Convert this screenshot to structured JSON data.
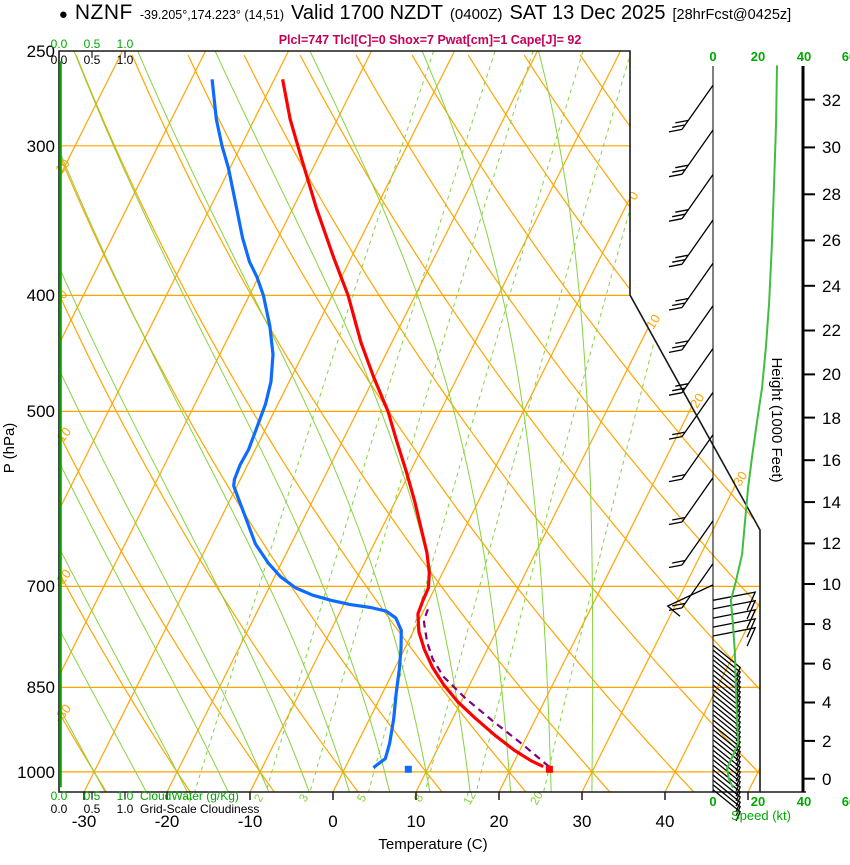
{
  "header": {
    "bullet": "●",
    "station_id": "NZNF",
    "coords": "-39.205°,174.223° (14,51)",
    "valid_label": "Valid 1700 NZDT",
    "init_time": "(0400Z)",
    "valid_date": "SAT 13 Dec 2025",
    "forecast_tag": "[28hrFcst@0425z]",
    "stats_line": "Plcl=747 Tlcl[C]=0 Shox=7 Pwat[cm]=1 Cape[J]= 92"
  },
  "chart_data": {
    "type": "line",
    "subtype": "skew-t-log-p-sounding",
    "title": "NZNF Valid 1700 NZDT (0400Z) SAT 13 Dec 2025 [28hrFcst@0425z]",
    "stability": {
      "Plcl": 747,
      "Tlcl_C": 0,
      "Shox": 7,
      "Pwat_cm": 1,
      "Cape_J": 92
    },
    "axes": {
      "pressure_label": "P (hPa)",
      "pressure_ticks_hpa": [
        250,
        300,
        400,
        500,
        700,
        850,
        1000
      ],
      "temperature_label": "Temperature (C)",
      "temperature_ticks_c": [
        -30,
        -20,
        -10,
        0,
        10,
        20,
        30,
        40
      ],
      "temperature_ticks_unlabeled_c": [
        50
      ],
      "height_label": "Height (1000 Feet)",
      "height_ticks_kft": [
        0,
        2,
        4,
        6,
        8,
        10,
        12,
        14,
        16,
        18,
        20,
        22,
        24,
        26,
        28,
        30,
        32
      ],
      "speed_label": "Speed (kt)",
      "speed_ticks_kt": [
        "0",
        "20",
        "40",
        "60"
      ],
      "cloud_scale_ticks": [
        "0.0",
        "0.5",
        "1.0"
      ],
      "cloudwater_label": "CloudWater (g/Kg)",
      "cloudiness_label": "Grid-Scale Cloudiness",
      "grid": true,
      "legend": false
    },
    "grid_spec": {
      "isotherms_c": {
        "min": -80,
        "max": 50,
        "step": 10
      },
      "dry_adiabats_c": {
        "min": -30,
        "max": 120,
        "step": 10
      },
      "moist_adiabats_c": {
        "min": -30,
        "max": 30,
        "step": 5
      },
      "mixing_ratio_gkg": [
        1,
        2,
        3,
        5,
        8,
        12,
        20
      ],
      "isotherm_boundary_labels_c": [
        0,
        10,
        20,
        30
      ],
      "dry_adiabat_edge_labels_c": [
        10,
        0,
        -10,
        -20,
        -30
      ]
    },
    "series": [
      {
        "name": "temperature_c_vs_hpa",
        "points": [
          [
            264,
            -49
          ],
          [
            285,
            -45.7
          ],
          [
            309,
            -41.7
          ],
          [
            338,
            -37.2
          ],
          [
            372,
            -32.1
          ],
          [
            400,
            -28.1
          ],
          [
            438,
            -23.7
          ],
          [
            468,
            -20.1
          ],
          [
            500,
            -16.3
          ],
          [
            530,
            -13.4
          ],
          [
            561,
            -10.5
          ],
          [
            594,
            -7.7
          ],
          [
            627,
            -5.2
          ],
          [
            656,
            -3.1
          ],
          [
            682,
            -1.6
          ],
          [
            702,
            -0.8
          ],
          [
            719,
            -0.7
          ],
          [
            738,
            -0.5
          ],
          [
            764,
            0.7
          ],
          [
            790,
            2.4
          ],
          [
            818,
            4.5
          ],
          [
            846,
            6.9
          ],
          [
            874,
            9.6
          ],
          [
            901,
            12.6
          ],
          [
            932,
            16.1
          ],
          [
            959,
            19.3
          ],
          [
            979,
            22.0
          ],
          [
            990,
            23.8
          ]
        ]
      },
      {
        "name": "dewpoint_c_vs_hpa",
        "points": [
          [
            264,
            -57.5
          ],
          [
            285,
            -54.6
          ],
          [
            300,
            -52.3
          ],
          [
            313,
            -50.2
          ],
          [
            335,
            -47.2
          ],
          [
            358,
            -44.3
          ],
          [
            375,
            -42
          ],
          [
            386,
            -40.2
          ],
          [
            400,
            -38.3
          ],
          [
            424,
            -35.7
          ],
          [
            448,
            -33.6
          ],
          [
            472,
            -32.2
          ],
          [
            493,
            -31.5
          ],
          [
            518,
            -31.1
          ],
          [
            538,
            -30.8
          ],
          [
            554,
            -30.9
          ],
          [
            570,
            -30.7
          ],
          [
            577,
            -30.4
          ],
          [
            592,
            -29
          ],
          [
            615,
            -26.9
          ],
          [
            645,
            -24.3
          ],
          [
            670,
            -21.5
          ],
          [
            687,
            -19.3
          ],
          [
            702,
            -16.8
          ],
          [
            712,
            -14.3
          ],
          [
            719,
            -11.8
          ],
          [
            725,
            -9.2
          ],
          [
            729,
            -6.6
          ],
          [
            734,
            -4.5
          ],
          [
            744,
            -2.9
          ],
          [
            762,
            -1.5
          ],
          [
            790,
            -0.4
          ],
          [
            821,
            0.6
          ],
          [
            861,
            1.7
          ],
          [
            903,
            2.9
          ],
          [
            947,
            3.9
          ],
          [
            975,
            4.3
          ],
          [
            986,
            3.7
          ],
          [
            992,
            3.4
          ]
        ]
      },
      {
        "name": "parcel_c_vs_hpa",
        "points": [
          [
            990,
            24.5
          ],
          [
            947,
            19.8
          ],
          [
            907,
            15.0
          ],
          [
            867,
            10.2
          ],
          [
            833,
            6.4
          ],
          [
            805,
            4.0
          ],
          [
            779,
            2.3
          ],
          [
            753,
            0.9
          ],
          [
            747,
            0.6
          ],
          [
            729,
            0.4
          ]
        ]
      },
      {
        "name": "wind_speed_kt_vs_hpa",
        "points": [
          [
            257,
            28.2
          ],
          [
            287,
            27.8
          ],
          [
            322,
            26.9
          ],
          [
            361,
            26
          ],
          [
            406,
            24.7
          ],
          [
            442,
            23.3
          ],
          [
            478,
            21.6
          ],
          [
            510,
            19.4
          ],
          [
            546,
            17.2
          ],
          [
            580,
            15.4
          ],
          [
            618,
            14.1
          ],
          [
            658,
            12.8
          ],
          [
            693,
            10.1
          ],
          [
            719,
            7.9
          ],
          [
            754,
            8.8
          ],
          [
            798,
            9.7
          ],
          [
            853,
            10.1
          ],
          [
            903,
            10.6
          ],
          [
            947,
            11
          ],
          [
            969,
            8.8
          ],
          [
            993,
            6.2
          ],
          [
            1014,
            7
          ],
          [
            1031,
            8.8
          ]
        ]
      },
      {
        "name": "cloud_water_gkg",
        "value": 0.0,
        "p_top": 255,
        "p_bottom": 1030
      }
    ],
    "surface": {
      "pressure_hpa": 995,
      "temperature_c": 24.7,
      "dewpoint_c": 7.7
    },
    "wind_barbs": [
      {
        "p": 267,
        "style": "cluster",
        "ticks": 3
      },
      {
        "p": 291,
        "style": "cluster",
        "ticks": 3
      },
      {
        "p": 317,
        "style": "cluster",
        "ticks": 3
      },
      {
        "p": 346,
        "style": "cluster",
        "ticks": 3
      },
      {
        "p": 376,
        "style": "cluster",
        "ticks": 3
      },
      {
        "p": 408,
        "style": "cluster",
        "ticks": 3
      },
      {
        "p": 443,
        "style": "cluster",
        "ticks": 3
      },
      {
        "p": 482,
        "style": "cluster",
        "ticks": 2
      },
      {
        "p": 523,
        "style": "cluster",
        "ticks": 2
      },
      {
        "p": 568,
        "style": "cluster",
        "ticks": 2
      },
      {
        "p": 617,
        "style": "cluster",
        "ticks": 2
      },
      {
        "p": 670,
        "style": "cluster",
        "ticks": 2
      },
      {
        "p": 698,
        "style": "left-full",
        "ticks": 1
      },
      {
        "p": 719,
        "style": "right-full",
        "ticks": 1
      },
      {
        "p": 731,
        "style": "right-full",
        "ticks": 1
      },
      {
        "p": 744,
        "style": "right-full",
        "ticks": 1
      },
      {
        "p": 757,
        "style": "right-full",
        "ticks": 1
      },
      {
        "p": 770,
        "style": "right-full",
        "ticks": 1
      },
      {
        "p": 784,
        "style": "hatch",
        "ticks": 1
      },
      {
        "p": 791,
        "style": "hatch",
        "ticks": 1
      },
      {
        "p": 799,
        "style": "hatch",
        "ticks": 1
      },
      {
        "p": 806,
        "style": "hatch",
        "ticks": 1
      },
      {
        "p": 814,
        "style": "hatch",
        "ticks": 1
      },
      {
        "p": 822,
        "style": "hatch",
        "ticks": 1
      },
      {
        "p": 830,
        "style": "hatch",
        "ticks": 1
      },
      {
        "p": 838,
        "style": "hatch",
        "ticks": 1
      },
      {
        "p": 846,
        "style": "hatch",
        "ticks": 1
      },
      {
        "p": 854,
        "style": "hatch",
        "ticks": 1
      },
      {
        "p": 862,
        "style": "hatch",
        "ticks": 1
      },
      {
        "p": 871,
        "style": "hatch",
        "ticks": 1
      },
      {
        "p": 879,
        "style": "hatch",
        "ticks": 1
      },
      {
        "p": 888,
        "style": "hatch",
        "ticks": 1
      },
      {
        "p": 896,
        "style": "hatch",
        "ticks": 1
      },
      {
        "p": 905,
        "style": "hatch",
        "ticks": 1
      },
      {
        "p": 914,
        "style": "hatch",
        "ticks": 1
      },
      {
        "p": 922,
        "style": "hatch",
        "ticks": 1
      },
      {
        "p": 931,
        "style": "hatch",
        "ticks": 1
      },
      {
        "p": 940,
        "style": "hatch",
        "ticks": 1
      },
      {
        "p": 950,
        "style": "hatch",
        "ticks": 1
      },
      {
        "p": 959,
        "style": "hatch",
        "ticks": 1
      },
      {
        "p": 968,
        "style": "hatch",
        "ticks": 1
      },
      {
        "p": 977,
        "style": "hatch",
        "ticks": 1
      },
      {
        "p": 987,
        "style": "hatch",
        "ticks": 1
      },
      {
        "p": 996,
        "style": "hatch",
        "ticks": 1
      },
      {
        "p": 1006,
        "style": "hatch",
        "ticks": 1
      },
      {
        "p": 1016,
        "style": "hatch",
        "ticks": 1
      },
      {
        "p": 1025,
        "style": "hatch",
        "ticks": 1
      },
      {
        "p": 1035,
        "style": "hatch",
        "ticks": 1
      }
    ],
    "colors": {
      "grid_orange": "#ffa500",
      "green_light": "#86d33f",
      "green_bright": "#00a800",
      "green_speed": "#3fbf3f",
      "temperature_red": "#ff0000",
      "dewpoint_blue": "#0d6bff",
      "parcel_purple": "#800080",
      "stats_pink": "#c40057",
      "axis_black": "#1a1a1a"
    }
  }
}
